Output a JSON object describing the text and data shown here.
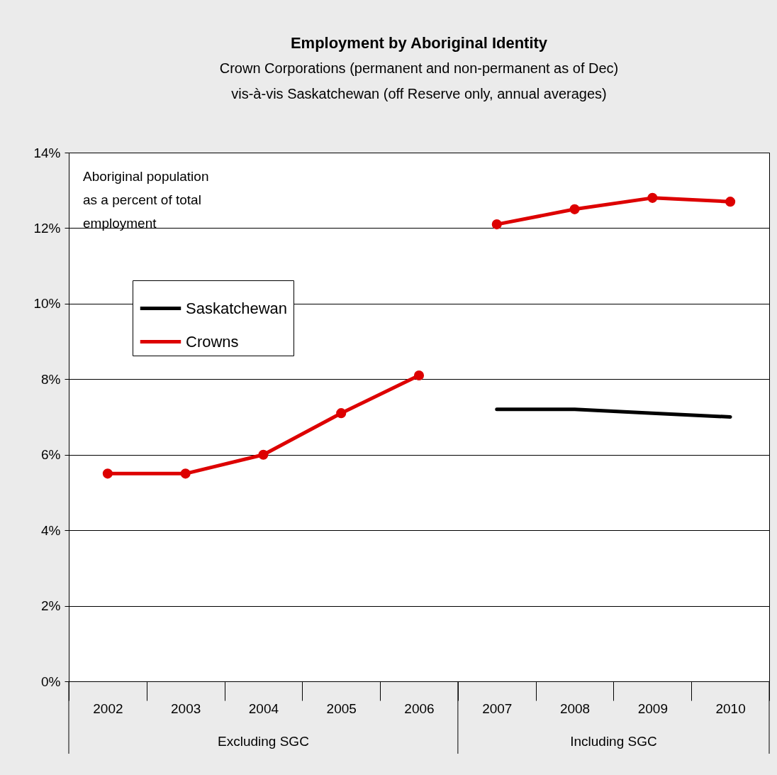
{
  "chart_data": {
    "type": "line",
    "title": "Employment by Aboriginal Identity",
    "subtitle": "Crown Corporations (permanent and non-permanent as of Dec)\nvis-à-vis Saskatchewan (off Reserve only, annual averages)",
    "categories": [
      "2002",
      "2003",
      "2004",
      "2005",
      "2006",
      "2007",
      "2008",
      "2009",
      "2010"
    ],
    "series": [
      {
        "name": "Saskatchewan",
        "color": "#000000",
        "marker": "none",
        "values": [
          null,
          null,
          null,
          null,
          null,
          7.2,
          7.2,
          7.1,
          7.0
        ]
      },
      {
        "name": "Crowns",
        "color": "#dd0000",
        "marker": "circle",
        "values": [
          5.5,
          5.5,
          6.0,
          7.1,
          8.1,
          12.1,
          12.5,
          12.8,
          12.7
        ]
      }
    ],
    "ylim": [
      0,
      14
    ],
    "yticks": [
      {
        "value": 0,
        "label": "0%"
      },
      {
        "value": 2,
        "label": "2%"
      },
      {
        "value": 4,
        "label": "4%"
      },
      {
        "value": 6,
        "label": "6%"
      },
      {
        "value": 8,
        "label": "8%"
      },
      {
        "value": 10,
        "label": "10%"
      },
      {
        "value": 12,
        "label": "12%"
      },
      {
        "value": 14,
        "label": "14%"
      }
    ],
    "grid": "y",
    "legend": "top left",
    "line_style": "solid",
    "annotations": [
      "Aboriginal population as a percent of total employment",
      "Excluding SGC",
      "Including SGC"
    ]
  }
}
